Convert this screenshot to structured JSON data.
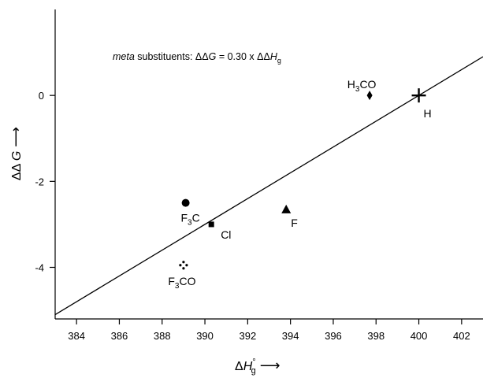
{
  "chart_data": {
    "type": "scatter",
    "title": "",
    "annotation": {
      "italic_word": "meta",
      "rest": " substituents:  ΔΔ",
      "g_italic": "G",
      "eq": " = 0.30 x ΔΔ",
      "h_italic": "H",
      "h_sub": "g"
    },
    "xlabel": {
      "prefix": "Δ",
      "var": "H",
      "sup": "°",
      "sub": "g",
      "arrow": "⟶"
    },
    "ylabel": {
      "prefix": "ΔΔ ",
      "var": "G",
      "arrow": "⟶"
    },
    "xlim": [
      383,
      403
    ],
    "ylim": [
      -5.2,
      2.0
    ],
    "xticks": [
      384,
      386,
      388,
      390,
      392,
      394,
      396,
      398,
      400,
      402
    ],
    "yticks": [
      0,
      -2,
      -4
    ],
    "fit_line": {
      "slope": 0.3,
      "intercept": -120.0
    },
    "points": [
      {
        "id": "h",
        "x": 400.0,
        "y": 0.0,
        "marker": "cross",
        "label": "H",
        "label_sub": "",
        "label_post": ""
      },
      {
        "id": "h3co",
        "x": 397.7,
        "y": 0.0,
        "marker": "diamond",
        "label": "H",
        "label_sub": "3",
        "label_post": "CO"
      },
      {
        "id": "f3c",
        "x": 389.1,
        "y": -2.5,
        "marker": "circle",
        "label": "F",
        "label_sub": "3",
        "label_post": "C"
      },
      {
        "id": "cl",
        "x": 390.3,
        "y": -3.0,
        "marker": "square",
        "label": "Cl",
        "label_sub": "",
        "label_post": ""
      },
      {
        "id": "f",
        "x": 393.8,
        "y": -2.65,
        "marker": "triangle",
        "label": "F",
        "label_sub": "",
        "label_post": ""
      },
      {
        "id": "f3co",
        "x": 389.0,
        "y": -3.95,
        "marker": "dots",
        "label": "F",
        "label_sub": "3",
        "label_post": "CO"
      }
    ]
  }
}
